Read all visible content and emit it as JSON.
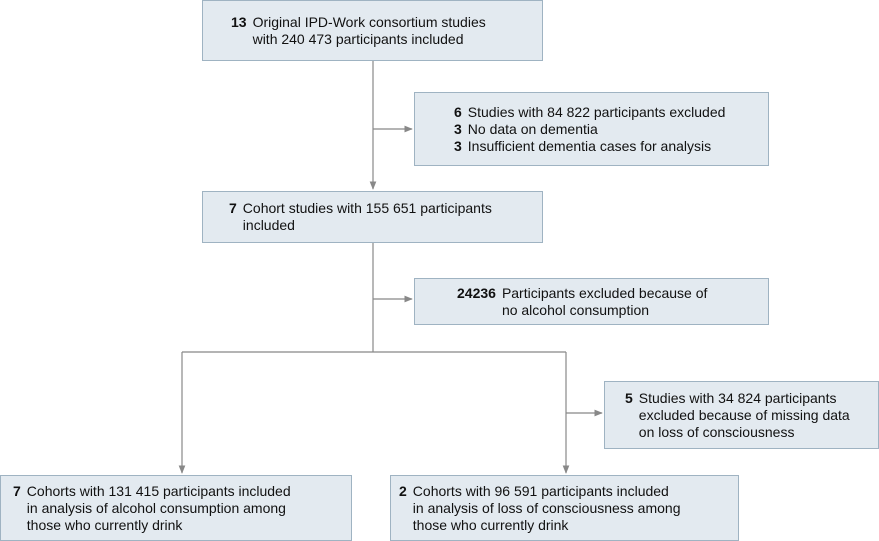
{
  "nodes": [
    {
      "number": "13",
      "lines": [
        "Original IPD-Work consortium studies",
        "with 240 473 participants included"
      ]
    },
    {
      "number": "6",
      "lines": [
        "Studies with 84 822 participants excluded"
      ],
      "items": [
        {
          "number": "3",
          "text": "No data on dementia"
        },
        {
          "number": "3",
          "text": "Insufficient dementia cases for analysis"
        }
      ]
    },
    {
      "number": "7",
      "lines": [
        "Cohort studies with 155 651 participants",
        "included"
      ]
    },
    {
      "number": "24236",
      "lines": [
        "Participants excluded because of",
        "no alcohol consumption"
      ]
    },
    {
      "number": "5",
      "lines": [
        "Studies with 34 824 participants",
        "excluded because of missing data",
        "on loss of consciousness"
      ]
    },
    {
      "number": "7",
      "lines": [
        "Cohorts with 131 415 participants included",
        "in analysis of alcohol consumption among",
        "those who currently drink"
      ]
    },
    {
      "number": "2",
      "lines": [
        "Cohorts with 96 591 participants included",
        "in analysis of loss of consciousness among",
        "those who currently drink"
      ]
    }
  ]
}
